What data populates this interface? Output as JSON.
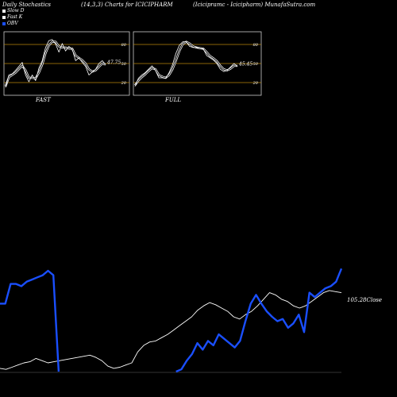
{
  "header": {
    "left": "Daily Stochastics",
    "center": "(14,3,3) Charts for ICICIPHARM",
    "right_a": "(Icicipramc - Icicipharm) MunafaSutra.com"
  },
  "legend": [
    {
      "label": "Slow D",
      "color": "#ffffff"
    },
    {
      "label": "Fast K",
      "color": "#ffffff"
    },
    {
      "label": "OBV",
      "color": "#1a4fff"
    }
  ],
  "chart_data": [
    {
      "type": "line",
      "title": "FAST",
      "ylim": [
        0,
        100
      ],
      "guides": [
        20,
        50,
        80
      ],
      "last_value_label": "47.75",
      "series": [
        {
          "name": "Fast K",
          "values": [
            8,
            30,
            32,
            38,
            45,
            52,
            30,
            18,
            30,
            20,
            42,
            55,
            78,
            90,
            92,
            84,
            70,
            85,
            72,
            80,
            75,
            55,
            60,
            52,
            45,
            30,
            35,
            40,
            50,
            55,
            48
          ]
        },
        {
          "name": "Slow D",
          "values": [
            10,
            26,
            30,
            34,
            40,
            46,
            38,
            25,
            25,
            24,
            34,
            48,
            68,
            82,
            88,
            88,
            80,
            78,
            78,
            76,
            76,
            64,
            60,
            56,
            50,
            40,
            36,
            38,
            44,
            50,
            48
          ]
        }
      ]
    },
    {
      "type": "line",
      "title": "FULL",
      "ylim": [
        0,
        100
      ],
      "guides": [
        20,
        50,
        80
      ],
      "last_value_label": "45.45",
      "series": [
        {
          "name": "Fast K",
          "values": [
            10,
            24,
            30,
            34,
            40,
            46,
            38,
            25,
            25,
            24,
            34,
            48,
            68,
            82,
            88,
            88,
            80,
            78,
            78,
            76,
            76,
            64,
            60,
            56,
            50,
            40,
            36,
            38,
            44,
            50,
            45
          ]
        },
        {
          "name": "Slow D",
          "values": [
            12,
            20,
            26,
            31,
            37,
            42,
            40,
            30,
            27,
            25,
            30,
            40,
            55,
            72,
            84,
            88,
            85,
            80,
            78,
            77,
            76,
            70,
            63,
            59,
            54,
            46,
            40,
            38,
            41,
            46,
            46
          ]
        }
      ]
    },
    {
      "type": "line",
      "title": "",
      "last_value_label": "105.28Close",
      "series": [
        {
          "name": "Close",
          "values": [
            3,
            2,
            4,
            6,
            8,
            9,
            12,
            10,
            8,
            9,
            10,
            11,
            12,
            13,
            14,
            15,
            13,
            10,
            5,
            3,
            4,
            6,
            8,
            18,
            24,
            27,
            28,
            31,
            34,
            38,
            42,
            46,
            50,
            56,
            60,
            63,
            61,
            58,
            55,
            50,
            48,
            52,
            55,
            60,
            66,
            72,
            70,
            66,
            64,
            60,
            58,
            60,
            64,
            68,
            72,
            74,
            73,
            72
          ]
        },
        {
          "name": "OBV",
          "values": [
            62,
            62,
            80,
            80,
            78,
            82,
            84,
            86,
            88,
            92,
            88,
            0,
            0,
            0,
            0,
            0,
            0,
            0,
            0,
            0,
            0,
            0,
            0,
            0,
            0,
            0,
            0,
            0,
            0,
            0,
            0,
            0,
            0,
            0,
            2,
            10,
            16,
            26,
            20,
            28,
            24,
            34,
            30,
            26,
            22,
            28,
            46,
            62,
            70,
            62,
            55,
            50,
            46,
            48,
            40,
            44,
            52,
            36,
            72,
            68,
            72,
            76,
            78,
            82,
            94
          ]
        }
      ]
    }
  ]
}
